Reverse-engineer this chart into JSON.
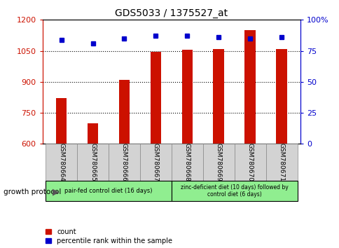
{
  "title": "GDS5033 / 1375527_at",
  "samples": [
    "GSM780664",
    "GSM780665",
    "GSM780666",
    "GSM780667",
    "GSM780668",
    "GSM780669",
    "GSM780670",
    "GSM780671"
  ],
  "counts": [
    820,
    700,
    910,
    1045,
    1055,
    1060,
    1150,
    1060
  ],
  "percentiles": [
    84,
    81,
    85,
    87,
    87,
    86,
    85,
    86
  ],
  "ylim_left": [
    600,
    1200
  ],
  "ylim_right": [
    0,
    100
  ],
  "yticks_left": [
    600,
    750,
    900,
    1050,
    1200
  ],
  "yticks_right": [
    0,
    25,
    50,
    75,
    100
  ],
  "bar_color": "#cc1100",
  "dot_color": "#0000cc",
  "grid_color": "#000000",
  "left_tick_color": "#cc1100",
  "right_tick_color": "#0000cc",
  "group1_label": "pair-fed control diet (16 days)",
  "group2_label": "zinc-deficient diet (10 days) followed by\ncontrol diet (6 days)",
  "group1_indices": [
    0,
    1,
    2,
    3
  ],
  "group2_indices": [
    4,
    5,
    6,
    7
  ],
  "group1_color": "#90ee90",
  "group2_color": "#90ee90",
  "protocol_label": "growth protocol",
  "legend_count_label": "count",
  "legend_percentile_label": "percentile rank within the sample",
  "bar_width": 0.35,
  "bg_color": "#ffffff",
  "plot_bg_color": "#ffffff",
  "xticklabel_bg": "#d3d3d3"
}
